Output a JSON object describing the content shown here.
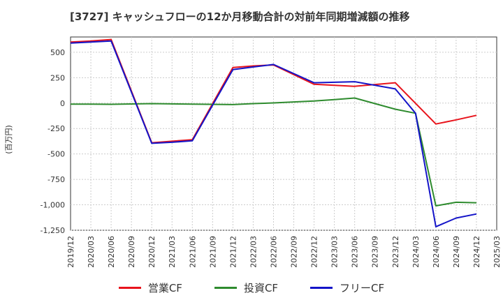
{
  "chart_data": {
    "type": "line",
    "title": "[3727]  キャッシュフローの12か月移動合計の対前年同期増減額の推移",
    "ylabel": "(百万円)",
    "xlabel": "",
    "ylim": [
      -1250,
      650
    ],
    "yticks": [
      500,
      250,
      0,
      -250,
      -500,
      -750,
      -1000,
      -1250
    ],
    "ytick_labels": [
      "500",
      "250",
      "0",
      "-250",
      "-500",
      "-750",
      "-1,000",
      "-1,250"
    ],
    "x": [
      "2019/12",
      "2020/03",
      "2020/06",
      "2020/09",
      "2020/12",
      "2021/03",
      "2021/06",
      "2021/09",
      "2021/12",
      "2022/03",
      "2022/06",
      "2022/09",
      "2022/12",
      "2023/03",
      "2023/06",
      "2023/09",
      "2023/12",
      "2024/03",
      "2024/06",
      "2024/09",
      "2024/12",
      "2025/03"
    ],
    "grid": true,
    "legend": "bottom",
    "series": [
      {
        "name": "営業CF",
        "color": "#e8141c",
        "values": [
          600,
          610,
          625,
          null,
          -390,
          -375,
          -360,
          null,
          350,
          365,
          375,
          null,
          185,
          175,
          165,
          null,
          200,
          null,
          -205,
          -165,
          -120,
          null
        ]
      },
      {
        "name": "投資CF",
        "color": "#2e8b2e",
        "values": [
          -10,
          -10,
          -12,
          null,
          -5,
          -8,
          -10,
          null,
          -15,
          -5,
          2,
          null,
          20,
          35,
          50,
          null,
          -60,
          -100,
          -1010,
          -975,
          -980,
          null
        ]
      },
      {
        "name": "フリーCF",
        "color": "#1414c8",
        "values": [
          590,
          600,
          610,
          null,
          -395,
          -385,
          -370,
          null,
          330,
          355,
          380,
          null,
          200,
          205,
          210,
          null,
          140,
          -100,
          -1215,
          -1130,
          -1090,
          null
        ]
      }
    ]
  }
}
